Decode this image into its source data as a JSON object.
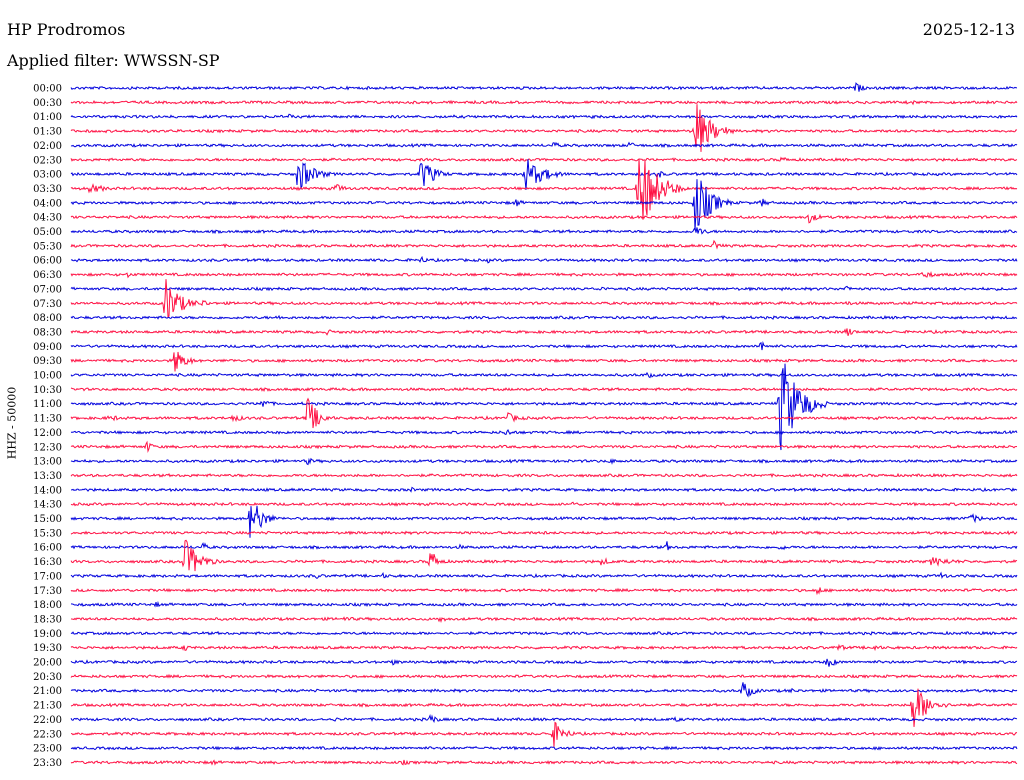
{
  "header": {
    "station": "HP Prodromos",
    "date": "2025-12-13",
    "filter": "Applied filter: WWSSN-SP"
  },
  "chart_data": {
    "type": "line",
    "title": "",
    "ylabel": "HHZ - 50000",
    "colors": [
      "#0000dd",
      "#ff1144"
    ],
    "rows": [
      "00:00",
      "00:30",
      "01:00",
      "01:30",
      "02:00",
      "02:30",
      "03:00",
      "03:30",
      "04:00",
      "04:30",
      "05:00",
      "05:30",
      "06:00",
      "06:30",
      "07:00",
      "07:30",
      "08:00",
      "08:30",
      "09:00",
      "09:30",
      "10:00",
      "10:30",
      "11:00",
      "11:30",
      "12:00",
      "12:30",
      "13:00",
      "13:30",
      "14:00",
      "14:30",
      "15:00",
      "15:30",
      "16:00",
      "16:30",
      "17:00",
      "17:30",
      "18:00",
      "18:30",
      "19:00",
      "19:30",
      "20:00",
      "20:30",
      "21:00",
      "21:30",
      "22:00",
      "22:30",
      "23:00",
      "23:30"
    ],
    "events": [
      {
        "row": 0,
        "x": 0.83,
        "amp": 6,
        "dur": 0.02
      },
      {
        "row": 0,
        "x": 0.94,
        "amp": 3,
        "dur": 0.02
      },
      {
        "row": 1,
        "x": 0.09,
        "amp": 2,
        "dur": 0.02
      },
      {
        "row": 1,
        "x": 0.89,
        "amp": 2,
        "dur": 0.03
      },
      {
        "row": 2,
        "x": 0.23,
        "amp": 3,
        "dur": 0.02
      },
      {
        "row": 2,
        "x": 0.55,
        "amp": 2,
        "dur": 0.02
      },
      {
        "row": 3,
        "x": 0.66,
        "amp": 34,
        "dur": 0.04
      },
      {
        "row": 3,
        "x": 0.69,
        "amp": 6,
        "dur": 0.02
      },
      {
        "row": 4,
        "x": 0.51,
        "amp": 4,
        "dur": 0.02
      },
      {
        "row": 4,
        "x": 0.59,
        "amp": 4,
        "dur": 0.02
      },
      {
        "row": 5,
        "x": 0.75,
        "amp": 3,
        "dur": 0.04
      },
      {
        "row": 6,
        "x": 0.24,
        "amp": 20,
        "dur": 0.04
      },
      {
        "row": 6,
        "x": 0.37,
        "amp": 18,
        "dur": 0.035
      },
      {
        "row": 6,
        "x": 0.48,
        "amp": 18,
        "dur": 0.05
      },
      {
        "row": 6,
        "x": 0.62,
        "amp": 5,
        "dur": 0.02
      },
      {
        "row": 7,
        "x": 0.02,
        "amp": 5,
        "dur": 0.05
      },
      {
        "row": 7,
        "x": 0.28,
        "amp": 5,
        "dur": 0.03
      },
      {
        "row": 7,
        "x": 0.6,
        "amp": 48,
        "dur": 0.05
      },
      {
        "row": 7,
        "x": 0.75,
        "amp": 4,
        "dur": 0.02
      },
      {
        "row": 8,
        "x": 0.47,
        "amp": 5,
        "dur": 0.02
      },
      {
        "row": 8,
        "x": 0.66,
        "amp": 36,
        "dur": 0.04
      },
      {
        "row": 8,
        "x": 0.73,
        "amp": 5,
        "dur": 0.02
      },
      {
        "row": 9,
        "x": 0.78,
        "amp": 6,
        "dur": 0.03
      },
      {
        "row": 10,
        "x": 0.66,
        "amp": 6,
        "dur": 0.03
      },
      {
        "row": 11,
        "x": 0.68,
        "amp": 6,
        "dur": 0.02
      },
      {
        "row": 11,
        "x": 0.9,
        "amp": 2,
        "dur": 0.02
      },
      {
        "row": 12,
        "x": 0.37,
        "amp": 4,
        "dur": 0.02
      },
      {
        "row": 12,
        "x": 0.44,
        "amp": 3,
        "dur": 0.02
      },
      {
        "row": 13,
        "x": 0.06,
        "amp": 3,
        "dur": 0.02
      },
      {
        "row": 13,
        "x": 0.9,
        "amp": 4,
        "dur": 0.05
      },
      {
        "row": 14,
        "x": 0.82,
        "amp": 5,
        "dur": 0.01
      },
      {
        "row": 14,
        "x": 0.56,
        "amp": 3,
        "dur": 0.02
      },
      {
        "row": 15,
        "x": 0.1,
        "amp": 26,
        "dur": 0.04
      },
      {
        "row": 15,
        "x": 0.14,
        "amp": 5,
        "dur": 0.015
      },
      {
        "row": 15,
        "x": 0.82,
        "amp": 3,
        "dur": 0.02
      },
      {
        "row": 16,
        "x": 0.22,
        "amp": 3,
        "dur": 0.02
      },
      {
        "row": 17,
        "x": 0.27,
        "amp": 3,
        "dur": 0.03
      },
      {
        "row": 17,
        "x": 0.82,
        "amp": 6,
        "dur": 0.02
      },
      {
        "row": 18,
        "x": 0.73,
        "amp": 10,
        "dur": 0.01
      },
      {
        "row": 19,
        "x": 0.11,
        "amp": 14,
        "dur": 0.03
      },
      {
        "row": 19,
        "x": 0.17,
        "amp": 2,
        "dur": 0.02
      },
      {
        "row": 20,
        "x": 0.61,
        "amp": 4,
        "dur": 0.015
      },
      {
        "row": 22,
        "x": 0.2,
        "amp": 6,
        "dur": 0.03
      },
      {
        "row": 22,
        "x": 0.77,
        "amp": 6,
        "dur": 0.02
      },
      {
        "row": 22,
        "x": 0.75,
        "amp": 54,
        "dur": 0.05
      },
      {
        "row": 23,
        "x": 0.04,
        "amp": 3,
        "dur": 0.06
      },
      {
        "row": 23,
        "x": 0.17,
        "amp": 4,
        "dur": 0.04
      },
      {
        "row": 23,
        "x": 0.25,
        "amp": 22,
        "dur": 0.03
      },
      {
        "row": 23,
        "x": 0.46,
        "amp": 6,
        "dur": 0.04
      },
      {
        "row": 24,
        "x": 0.46,
        "amp": 4,
        "dur": 0.03
      },
      {
        "row": 25,
        "x": 0.08,
        "amp": 6,
        "dur": 0.02
      },
      {
        "row": 26,
        "x": 0.25,
        "amp": 4,
        "dur": 0.02
      },
      {
        "row": 26,
        "x": 0.57,
        "amp": 3,
        "dur": 0.02
      },
      {
        "row": 27,
        "x": 0.52,
        "amp": 2,
        "dur": 0.02
      },
      {
        "row": 28,
        "x": 0.36,
        "amp": 3,
        "dur": 0.01
      },
      {
        "row": 29,
        "x": 0.53,
        "amp": 3,
        "dur": 0.02
      },
      {
        "row": 30,
        "x": 0.19,
        "amp": 26,
        "dur": 0.03
      },
      {
        "row": 30,
        "x": 0.95,
        "amp": 5,
        "dur": 0.04
      },
      {
        "row": 31,
        "x": 0.5,
        "amp": 2,
        "dur": 0.02
      },
      {
        "row": 32,
        "x": 0.14,
        "amp": 6,
        "dur": 0.01
      },
      {
        "row": 32,
        "x": 0.41,
        "amp": 3,
        "dur": 0.02
      },
      {
        "row": 32,
        "x": 0.63,
        "amp": 6,
        "dur": 0.01
      },
      {
        "row": 32,
        "x": 0.75,
        "amp": 4,
        "dur": 0.02
      },
      {
        "row": 33,
        "x": 0.12,
        "amp": 24,
        "dur": 0.04
      },
      {
        "row": 33,
        "x": 0.38,
        "amp": 14,
        "dur": 0.02
      },
      {
        "row": 33,
        "x": 0.56,
        "amp": 4,
        "dur": 0.04
      },
      {
        "row": 33,
        "x": 0.91,
        "amp": 5,
        "dur": 0.07
      },
      {
        "row": 34,
        "x": 0.26,
        "amp": 3,
        "dur": 0.02
      },
      {
        "row": 34,
        "x": 0.33,
        "amp": 3,
        "dur": 0.02
      },
      {
        "row": 34,
        "x": 0.92,
        "amp": 4,
        "dur": 0.02
      },
      {
        "row": 35,
        "x": 0.79,
        "amp": 7,
        "dur": 0.01
      },
      {
        "row": 35,
        "x": 0.67,
        "amp": 2,
        "dur": 0.03
      },
      {
        "row": 36,
        "x": 0.09,
        "amp": 3,
        "dur": 0.02
      },
      {
        "row": 37,
        "x": 0.29,
        "amp": 3,
        "dur": 0.03
      },
      {
        "row": 37,
        "x": 0.39,
        "amp": 4,
        "dur": 0.02
      },
      {
        "row": 38,
        "x": 0.78,
        "amp": 3,
        "dur": 0.02
      },
      {
        "row": 39,
        "x": 0.12,
        "amp": 4,
        "dur": 0.02
      },
      {
        "row": 39,
        "x": 0.81,
        "amp": 4,
        "dur": 0.03
      },
      {
        "row": 39,
        "x": 0.85,
        "amp": 4,
        "dur": 0.02
      },
      {
        "row": 40,
        "x": 0.34,
        "amp": 3,
        "dur": 0.03
      },
      {
        "row": 40,
        "x": 0.8,
        "amp": 8,
        "dur": 0.02
      },
      {
        "row": 42,
        "x": 0.71,
        "amp": 10,
        "dur": 0.03
      },
      {
        "row": 42,
        "x": 0.76,
        "amp": 3,
        "dur": 0.02
      },
      {
        "row": 43,
        "x": 0.89,
        "amp": 26,
        "dur": 0.04
      },
      {
        "row": 43,
        "x": 0.94,
        "amp": 3,
        "dur": 0.02
      },
      {
        "row": 44,
        "x": 0.28,
        "amp": 3,
        "dur": 0.01
      },
      {
        "row": 44,
        "x": 0.38,
        "amp": 6,
        "dur": 0.02
      },
      {
        "row": 44,
        "x": 0.64,
        "amp": 4,
        "dur": 0.01
      },
      {
        "row": 45,
        "x": 0.51,
        "amp": 14,
        "dur": 0.03
      },
      {
        "row": 46,
        "x": 0.6,
        "amp": 2,
        "dur": 0.02
      },
      {
        "row": 47,
        "x": 0.15,
        "amp": 4,
        "dur": 0.01
      },
      {
        "row": 47,
        "x": 0.35,
        "amp": 3,
        "dur": 0.03
      }
    ]
  }
}
